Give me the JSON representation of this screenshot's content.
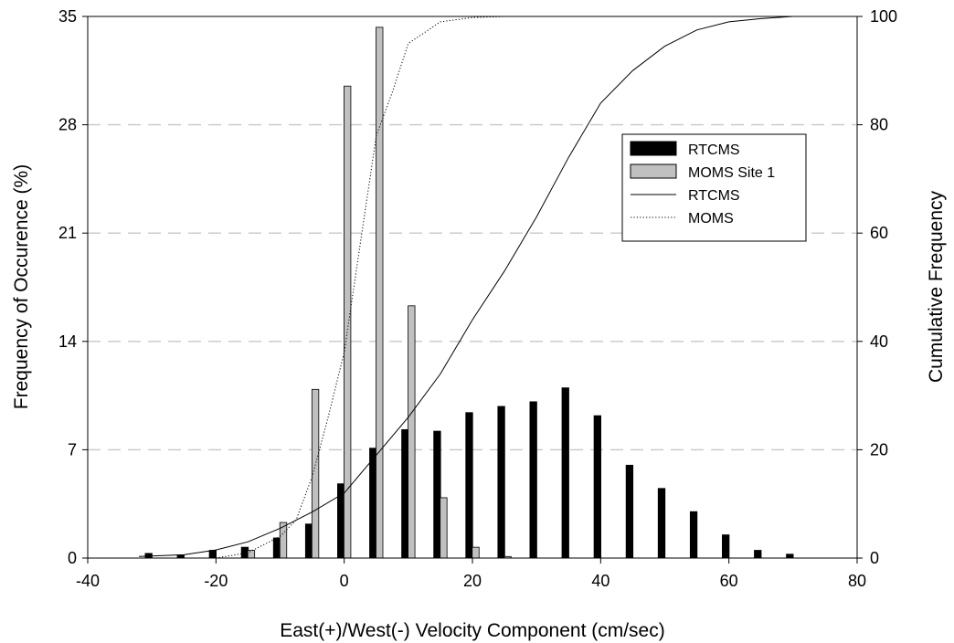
{
  "chart_data": {
    "type": "bar",
    "xlabel": "East(+)/West(-) Velocity Component (cm/sec)",
    "ylabel": "Frequency of Occurence (%)",
    "y2label": "Cumulative Frequency",
    "xlim": [
      -40,
      80
    ],
    "ylim": [
      0,
      35
    ],
    "y2lim": [
      0,
      100
    ],
    "xticks": [
      "-40",
      "-20",
      "0",
      "20",
      "40",
      "60",
      "80"
    ],
    "xtick_values": [
      -40,
      -20,
      0,
      20,
      40,
      60,
      80
    ],
    "yticks": [
      "0",
      "7",
      "14",
      "21",
      "28",
      "35"
    ],
    "ytick_values": [
      0,
      7,
      14,
      21,
      28,
      35
    ],
    "y2ticks": [
      "0",
      "20",
      "40",
      "60",
      "80",
      "100"
    ],
    "y2tick_values": [
      0,
      20,
      40,
      60,
      80,
      100
    ],
    "grid": "horizontal dashed",
    "legend_position": "upper-right",
    "bar_series": [
      {
        "name": "RTCMS",
        "color": "#000000",
        "offset": -1,
        "x": [
          -30,
          -25,
          -20,
          -15,
          -10,
          -5,
          0,
          5,
          10,
          15,
          20,
          25,
          30,
          35,
          40,
          45,
          50,
          55,
          60,
          65,
          70
        ],
        "values": [
          0.3,
          0.2,
          0.5,
          0.7,
          1.3,
          2.2,
          4.8,
          7.1,
          8.3,
          8.2,
          9.4,
          9.8,
          10.1,
          11.0,
          9.2,
          6.0,
          4.5,
          3.0,
          1.5,
          0.5,
          0.25
        ]
      },
      {
        "name": "MOMS Site 1",
        "color": "#c0c0c0",
        "offset": 1,
        "x": [
          -15,
          -10,
          -5,
          0,
          5,
          10,
          15,
          20,
          25
        ],
        "values": [
          0.5,
          2.3,
          10.9,
          30.5,
          34.3,
          16.3,
          3.9,
          0.7,
          0.1
        ]
      }
    ],
    "line_series": [
      {
        "name": "RTCMS",
        "style": "solid",
        "x": [
          -32,
          -25,
          -20,
          -15,
          -10,
          -5,
          0,
          5,
          10,
          15,
          20,
          25,
          30,
          35,
          40,
          45,
          50,
          55,
          60,
          65,
          70
        ],
        "values": [
          0.3,
          0.6,
          1.5,
          3.0,
          5.5,
          8.5,
          12,
          19,
          26,
          34,
          44,
          53,
          63,
          74,
          84,
          90,
          94.5,
          97.5,
          99,
          99.6,
          100
        ]
      },
      {
        "name": "MOMS",
        "style": "dotted",
        "x": [
          -20,
          -15,
          -10,
          -7.5,
          -5,
          -2.5,
          0,
          2.5,
          5,
          7.5,
          10,
          12.5,
          15,
          20,
          25
        ],
        "values": [
          0,
          1,
          4,
          7,
          15,
          26,
          38,
          58,
          78,
          86,
          95,
          97,
          99,
          99.8,
          100
        ]
      }
    ],
    "legend": [
      {
        "label": "RTCMS",
        "kind": "bar",
        "color": "#000000"
      },
      {
        "label": "MOMS Site 1",
        "kind": "bar",
        "color": "#c0c0c0"
      },
      {
        "label": "RTCMS",
        "kind": "line",
        "style": "solid"
      },
      {
        "label": "MOMS",
        "kind": "line",
        "style": "dotted"
      }
    ]
  }
}
